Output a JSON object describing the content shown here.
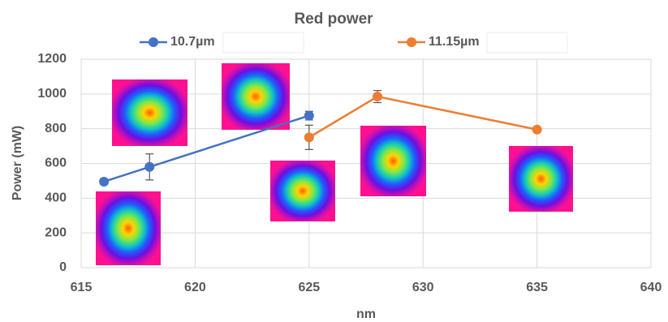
{
  "chart_data": {
    "type": "line",
    "title": "Red power",
    "x_label": "nm",
    "y_label": "Power (mW)",
    "xlim": [
      615,
      640
    ],
    "xticks": [
      615,
      620,
      625,
      630,
      635,
      640
    ],
    "ylim": [
      0,
      1200
    ],
    "yticks": [
      0,
      200,
      400,
      600,
      800,
      1000,
      1200
    ],
    "grid": true,
    "legend": "top",
    "series": [
      {
        "name": "10.7µm",
        "color": "#4472c4",
        "x": [
          616,
          618,
          625
        ],
        "values": [
          495,
          580,
          875
        ],
        "errors": [
          15,
          75,
          25
        ]
      },
      {
        "name": "11.15µm",
        "color": "#ed7d31",
        "x": [
          625,
          628,
          635
        ],
        "values": [
          750,
          985,
          795
        ],
        "errors": [
          70,
          35,
          10
        ]
      }
    ]
  }
}
